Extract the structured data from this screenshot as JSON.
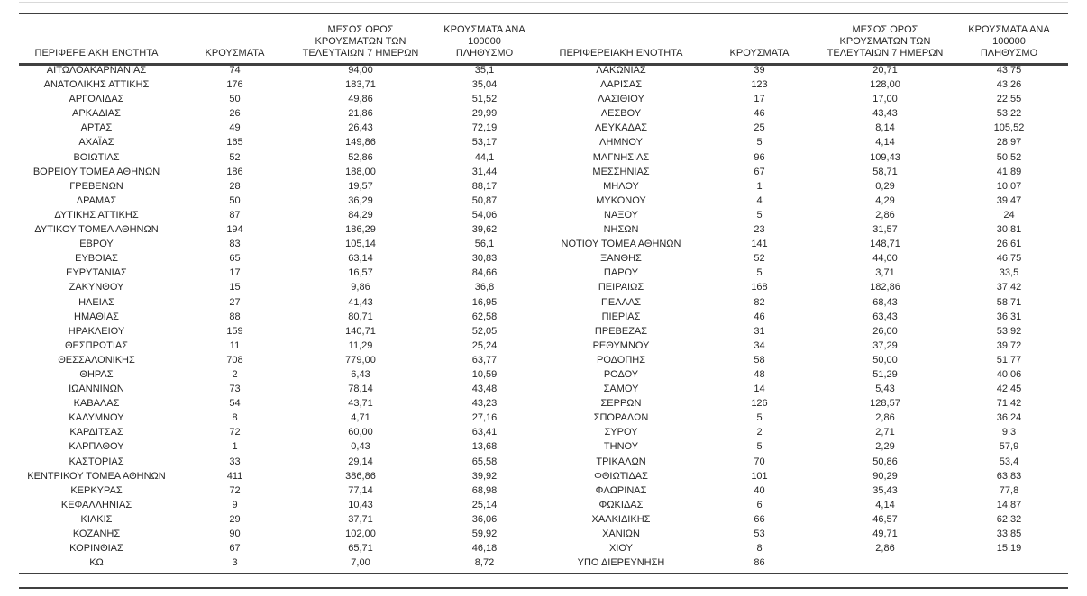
{
  "colors": {
    "text": "#262626",
    "rule_dark": "#404040",
    "rule_light": "#d9d9d9",
    "background": "#ffffff"
  },
  "table": {
    "headers": {
      "region": "ΠΕΡΙΦΕΡΕΙΑΚΗ ΕΝΟΤΗΤΑ",
      "cases": "ΚΡΟΥΣΜΑΤΑ",
      "avg7": "ΜΕΣΟΣ ΟΡΟΣ\nΚΡΟΥΣΜΑΤΩΝ ΤΩΝ\nΤΕΛΕΥΤΑΙΩΝ 7 ΗΜΕΡΩΝ",
      "per100k": "ΚΡΟΥΣΜΑΤΑ ΑΝΑ 100000\nΠΛΗΘΥΣΜΟ"
    },
    "rows_left": [
      [
        "ΑΙΤΩΛΟΑΚΑΡΝΑΝΙΑΣ",
        "74",
        "94,00",
        "35,1"
      ],
      [
        "ΑΝΑΤΟΛΙΚΗΣ ΑΤΤΙΚΗΣ",
        "176",
        "183,71",
        "35,04"
      ],
      [
        "ΑΡΓΟΛΙΔΑΣ",
        "50",
        "49,86",
        "51,52"
      ],
      [
        "ΑΡΚΑΔΙΑΣ",
        "26",
        "21,86",
        "29,99"
      ],
      [
        "ΑΡΤΑΣ",
        "49",
        "26,43",
        "72,19"
      ],
      [
        "ΑΧΑΪΑΣ",
        "165",
        "149,86",
        "53,17"
      ],
      [
        "ΒΟΙΩΤΙΑΣ",
        "52",
        "52,86",
        "44,1"
      ],
      [
        "ΒΟΡΕΙΟΥ ΤΟΜΕΑ ΑΘΗΝΩΝ",
        "186",
        "188,00",
        "31,44"
      ],
      [
        "ΓΡΕΒΕΝΩΝ",
        "28",
        "19,57",
        "88,17"
      ],
      [
        "ΔΡΑΜΑΣ",
        "50",
        "36,29",
        "50,87"
      ],
      [
        "ΔΥΤΙΚΗΣ ΑΤΤΙΚΗΣ",
        "87",
        "84,29",
        "54,06"
      ],
      [
        "ΔΥΤΙΚΟΥ ΤΟΜΕΑ ΑΘΗΝΩΝ",
        "194",
        "186,29",
        "39,62"
      ],
      [
        "ΕΒΡΟΥ",
        "83",
        "105,14",
        "56,1"
      ],
      [
        "ΕΥΒΟΙΑΣ",
        "65",
        "63,14",
        "30,83"
      ],
      [
        "ΕΥΡΥΤΑΝΙΑΣ",
        "17",
        "16,57",
        "84,66"
      ],
      [
        "ΖΑΚΥΝΘΟΥ",
        "15",
        "9,86",
        "36,8"
      ],
      [
        "ΗΛΕΙΑΣ",
        "27",
        "41,43",
        "16,95"
      ],
      [
        "ΗΜΑΘΙΑΣ",
        "88",
        "80,71",
        "62,58"
      ],
      [
        "ΗΡΑΚΛΕΙΟΥ",
        "159",
        "140,71",
        "52,05"
      ],
      [
        "ΘΕΣΠΡΩΤΙΑΣ",
        "11",
        "11,29",
        "25,24"
      ],
      [
        "ΘΕΣΣΑΛΟΝΙΚΗΣ",
        "708",
        "779,00",
        "63,77"
      ],
      [
        "ΘΗΡΑΣ",
        "2",
        "6,43",
        "10,59"
      ],
      [
        "ΙΩΑΝΝΙΝΩΝ",
        "73",
        "78,14",
        "43,48"
      ],
      [
        "ΚΑΒΑΛΑΣ",
        "54",
        "43,71",
        "43,23"
      ],
      [
        "ΚΑΛΥΜΝΟΥ",
        "8",
        "4,71",
        "27,16"
      ],
      [
        "ΚΑΡΔΙΤΣΑΣ",
        "72",
        "60,00",
        "63,41"
      ],
      [
        "ΚΑΡΠΑΘΟΥ",
        "1",
        "0,43",
        "13,68"
      ],
      [
        "ΚΑΣΤΟΡΙΑΣ",
        "33",
        "29,14",
        "65,58"
      ],
      [
        "ΚΕΝΤΡΙΚΟΥ ΤΟΜΕΑ ΑΘΗΝΩΝ",
        "411",
        "386,86",
        "39,92"
      ],
      [
        "ΚΕΡΚΥΡΑΣ",
        "72",
        "77,14",
        "68,98"
      ],
      [
        "ΚΕΦΑΛΛΗΝΙΑΣ",
        "9",
        "10,43",
        "25,14"
      ],
      [
        "ΚΙΛΚΙΣ",
        "29",
        "37,71",
        "36,06"
      ],
      [
        "ΚΟΖΑΝΗΣ",
        "90",
        "102,00",
        "59,92"
      ],
      [
        "ΚΟΡΙΝΘΙΑΣ",
        "67",
        "65,71",
        "46,18"
      ],
      [
        "ΚΩ",
        "3",
        "7,00",
        "8,72"
      ]
    ],
    "rows_right": [
      [
        "ΛΑΚΩΝΙΑΣ",
        "39",
        "20,71",
        "43,75"
      ],
      [
        "ΛΑΡΙΣΑΣ",
        "123",
        "128,00",
        "43,26"
      ],
      [
        "ΛΑΣΙΘΙΟΥ",
        "17",
        "17,00",
        "22,55"
      ],
      [
        "ΛΕΣΒΟΥ",
        "46",
        "43,43",
        "53,22"
      ],
      [
        "ΛΕΥΚΑΔΑΣ",
        "25",
        "8,14",
        "105,52"
      ],
      [
        "ΛΗΜΝΟΥ",
        "5",
        "4,14",
        "28,97"
      ],
      [
        "ΜΑΓΝΗΣΙΑΣ",
        "96",
        "109,43",
        "50,52"
      ],
      [
        "ΜΕΣΣΗΝΙΑΣ",
        "67",
        "58,71",
        "41,89"
      ],
      [
        "ΜΗΛΟΥ",
        "1",
        "0,29",
        "10,07"
      ],
      [
        "ΜΥΚΟΝΟΥ",
        "4",
        "4,29",
        "39,47"
      ],
      [
        "ΝΑΞΟΥ",
        "5",
        "2,86",
        "24"
      ],
      [
        "ΝΗΣΩΝ",
        "23",
        "31,57",
        "30,81"
      ],
      [
        "ΝΟΤΙΟΥ ΤΟΜΕΑ ΑΘΗΝΩΝ",
        "141",
        "148,71",
        "26,61"
      ],
      [
        "ΞΑΝΘΗΣ",
        "52",
        "44,00",
        "46,75"
      ],
      [
        "ΠΑΡΟΥ",
        "5",
        "3,71",
        "33,5"
      ],
      [
        "ΠΕΙΡΑΙΩΣ",
        "168",
        "182,86",
        "37,42"
      ],
      [
        "ΠΕΛΛΑΣ",
        "82",
        "68,43",
        "58,71"
      ],
      [
        "ΠΙΕΡΙΑΣ",
        "46",
        "63,43",
        "36,31"
      ],
      [
        "ΠΡΕΒΕΖΑΣ",
        "31",
        "26,00",
        "53,92"
      ],
      [
        "ΡΕΘΥΜΝΟΥ",
        "34",
        "37,29",
        "39,72"
      ],
      [
        "ΡΟΔΟΠΗΣ",
        "58",
        "50,00",
        "51,77"
      ],
      [
        "ΡΟΔΟΥ",
        "48",
        "51,29",
        "40,06"
      ],
      [
        "ΣΑΜΟΥ",
        "14",
        "5,43",
        "42,45"
      ],
      [
        "ΣΕΡΡΩΝ",
        "126",
        "128,57",
        "71,42"
      ],
      [
        "ΣΠΟΡΑΔΩΝ",
        "5",
        "2,86",
        "36,24"
      ],
      [
        "ΣΥΡΟΥ",
        "2",
        "2,71",
        "9,3"
      ],
      [
        "ΤΗΝΟΥ",
        "5",
        "2,29",
        "57,9"
      ],
      [
        "ΤΡΙΚΑΛΩΝ",
        "70",
        "50,86",
        "53,4"
      ],
      [
        "ΦΘΙΩΤΙΔΑΣ",
        "101",
        "90,29",
        "63,83"
      ],
      [
        "ΦΛΩΡΙΝΑΣ",
        "40",
        "35,43",
        "77,8"
      ],
      [
        "ΦΩΚΙΔΑΣ",
        "6",
        "4,14",
        "14,87"
      ],
      [
        "ΧΑΛΚΙΔΙΚΗΣ",
        "66",
        "46,57",
        "62,32"
      ],
      [
        "ΧΑΝΙΩΝ",
        "53",
        "49,71",
        "33,85"
      ],
      [
        "ΧΙΟΥ",
        "8",
        "2,86",
        "15,19"
      ],
      [
        "ΥΠΟ ΔΙΕΡΕΥΝΗΣΗ",
        "86",
        "",
        ""
      ]
    ]
  }
}
